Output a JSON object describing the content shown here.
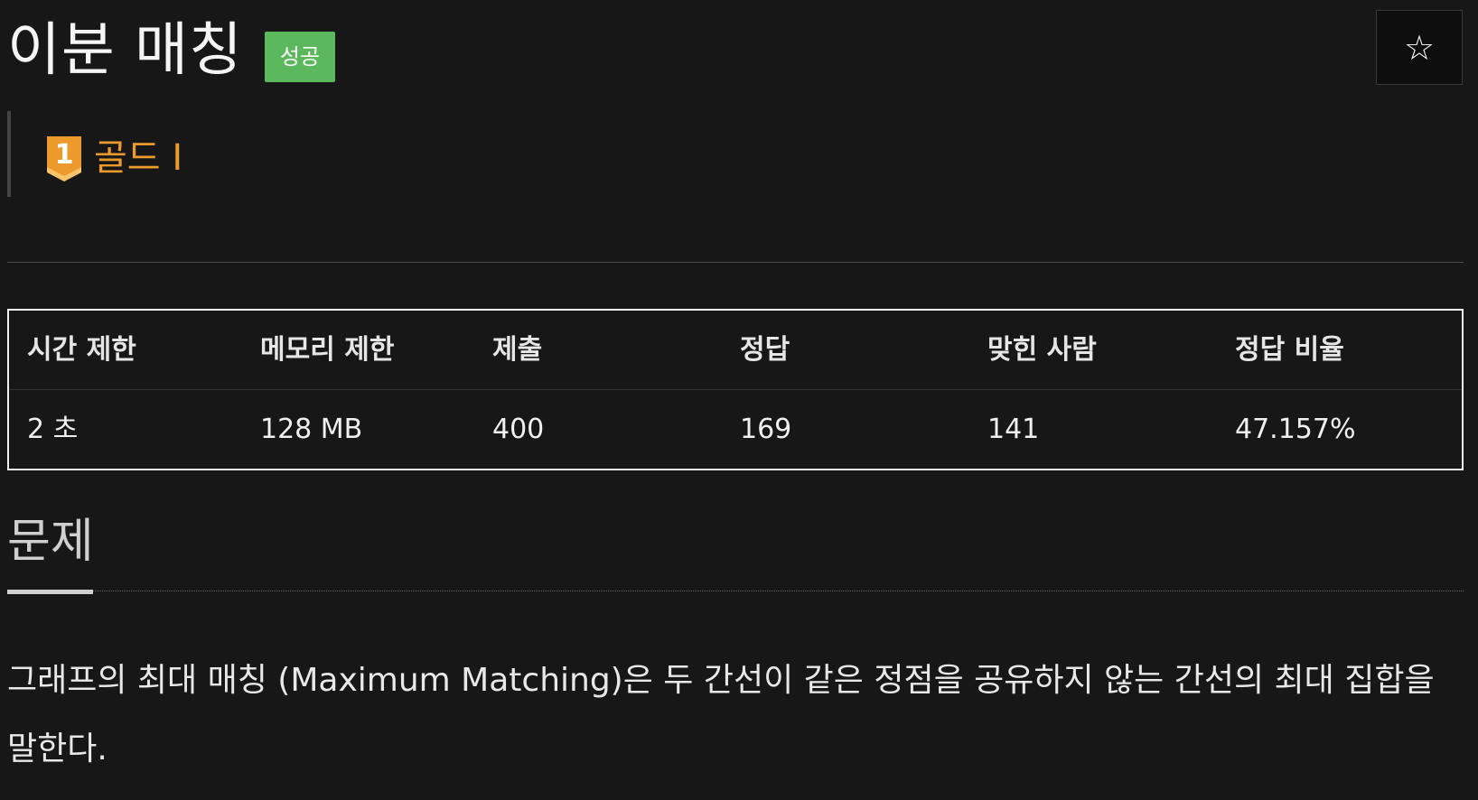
{
  "problem": {
    "title": "이분 매칭",
    "status_badge": "성공",
    "star_label": "☆",
    "tier": {
      "label": "골드 I",
      "number": "1",
      "color": "#ec9a2c"
    }
  },
  "stats": {
    "headers": [
      "시간 제한",
      "메모리 제한",
      "제출",
      "정답",
      "맞힌 사람",
      "정답 비율"
    ],
    "values": [
      "2 초",
      "128 MB",
      "400",
      "169",
      "141",
      "47.157%"
    ]
  },
  "section": {
    "title": "문제",
    "description": "그래프의 최대 매칭 (Maximum Matching)은 두 간선이 같은 정점을 공유하지 않는 간선의 최대 집합을 말한다."
  },
  "colors": {
    "background": "#171717",
    "badge_success": "#5cb85c",
    "tier_gold": "#ec9a2c"
  }
}
